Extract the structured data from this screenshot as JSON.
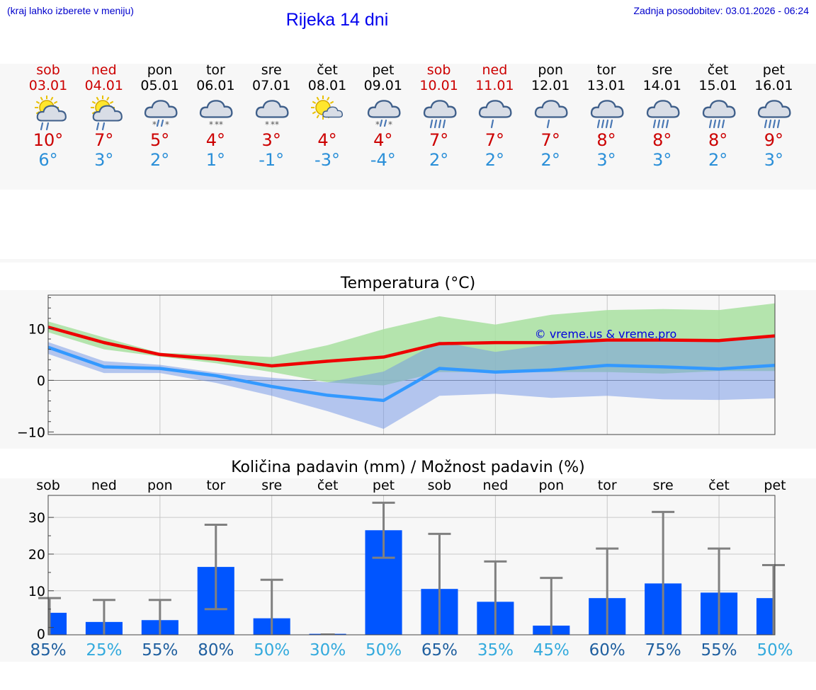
{
  "header": {
    "hint": "(kraj lahko izberete v meniju)",
    "title": "Rijeka 14 dni",
    "updated": "Zadnja posodobitev: 03.01.2026 - 06:24"
  },
  "days": [
    {
      "name": "sob",
      "date": "03.01",
      "weekend": true,
      "icon": "sun-cloud-rain-icon",
      "tmax": "10°",
      "tmin": "6°"
    },
    {
      "name": "ned",
      "date": "04.01",
      "weekend": true,
      "icon": "sun-cloud-rain-icon",
      "tmax": "7°",
      "tmin": "3°"
    },
    {
      "name": "pon",
      "date": "05.01",
      "weekend": false,
      "icon": "cloud-sleet-icon",
      "tmax": "5°",
      "tmin": "2°"
    },
    {
      "name": "tor",
      "date": "06.01",
      "weekend": false,
      "icon": "cloud-snow-icon",
      "tmax": "4°",
      "tmin": "1°"
    },
    {
      "name": "sre",
      "date": "07.01",
      "weekend": false,
      "icon": "cloud-snow-icon",
      "tmax": "3°",
      "tmin": "-1°"
    },
    {
      "name": "čet",
      "date": "08.01",
      "weekend": false,
      "icon": "sun-cloud-icon",
      "tmax": "4°",
      "tmin": "-3°"
    },
    {
      "name": "pet",
      "date": "09.01",
      "weekend": false,
      "icon": "cloud-sleet-icon",
      "tmax": "4°",
      "tmin": "-4°"
    },
    {
      "name": "sob",
      "date": "10.01",
      "weekend": true,
      "icon": "cloud-heavy-rain-icon",
      "tmax": "7°",
      "tmin": "2°"
    },
    {
      "name": "ned",
      "date": "11.01",
      "weekend": true,
      "icon": "cloud-rain-icon",
      "tmax": "7°",
      "tmin": "2°"
    },
    {
      "name": "pon",
      "date": "12.01",
      "weekend": false,
      "icon": "cloud-rain-icon",
      "tmax": "7°",
      "tmin": "2°"
    },
    {
      "name": "tor",
      "date": "13.01",
      "weekend": false,
      "icon": "cloud-heavy-rain-icon",
      "tmax": "8°",
      "tmin": "3°"
    },
    {
      "name": "sre",
      "date": "14.01",
      "weekend": false,
      "icon": "cloud-heavy-rain-icon",
      "tmax": "8°",
      "tmin": "3°"
    },
    {
      "name": "čet",
      "date": "15.01",
      "weekend": false,
      "icon": "cloud-heavy-rain-icon",
      "tmax": "8°",
      "tmin": "2°"
    },
    {
      "name": "pet",
      "date": "16.01",
      "weekend": false,
      "icon": "cloud-heavy-rain-icon",
      "tmax": "9°",
      "tmin": "3°"
    }
  ],
  "chart_data": [
    {
      "type": "line",
      "title": "Temperatura (°C)",
      "xlabel": "",
      "ylabel": "",
      "ylim": [
        -10.5,
        16.5
      ],
      "yticks": [
        "10",
        "0",
        "−10"
      ],
      "grid": true,
      "watermark": "© vreme.us & vreme.pro",
      "series": [
        {
          "name": "max",
          "color": "#ee0000",
          "values": [
            10.3,
            7.3,
            5.0,
            4.1,
            2.8,
            3.7,
            4.5,
            7.1,
            7.3,
            7.3,
            7.8,
            7.8,
            7.7,
            8.6
          ]
        },
        {
          "name": "min",
          "color": "#3399ff",
          "values": [
            6.4,
            2.6,
            2.3,
            0.9,
            -1.2,
            -2.9,
            -3.9,
            2.3,
            1.6,
            2.0,
            2.9,
            2.6,
            2.2,
            2.9
          ]
        },
        {
          "name": "max_range",
          "color": "#a8e0a0",
          "lower": [
            9.3,
            6.0,
            4.6,
            3.3,
            1.6,
            -0.4,
            -1.0,
            1.6,
            1.6,
            1.6,
            1.6,
            1.3,
            1.8,
            1.8
          ],
          "upper": [
            11.4,
            8.3,
            5.3,
            5.0,
            4.5,
            6.8,
            9.9,
            12.4,
            10.8,
            12.7,
            13.6,
            13.8,
            13.6,
            14.9
          ]
        },
        {
          "name": "min_range",
          "color": "#a0b8f0",
          "lower": [
            5.1,
            1.4,
            1.4,
            -0.5,
            -3.0,
            -6.0,
            -9.4,
            -3.0,
            -2.6,
            -3.4,
            -3.0,
            -3.7,
            -3.8,
            -3.5
          ],
          "upper": [
            7.4,
            3.7,
            3.0,
            1.5,
            0.5,
            -0.4,
            1.7,
            7.5,
            5.5,
            7.0,
            7.8,
            8.2,
            7.7,
            8.5
          ]
        }
      ]
    },
    {
      "type": "bar",
      "title": "Količina padavin (mm) / Možnost padavin (%)",
      "categories": [
        "sob",
        "ned",
        "pon",
        "tor",
        "sre",
        "čet",
        "pet",
        "sob",
        "ned",
        "pon",
        "tor",
        "sre",
        "čet",
        "pet"
      ],
      "ylim": [
        -2,
        36
      ],
      "yticks": [
        "30",
        "20",
        "10",
        "0"
      ],
      "series": [
        {
          "name": "padavine (mm)",
          "color": "#0055ff",
          "values": [
            4.0,
            1.5,
            2.0,
            16.5,
            2.5,
            0.0,
            26.5,
            10.5,
            7.0,
            0.5,
            8.0,
            12.0,
            9.5,
            8.0
          ]
        }
      ],
      "error_low": [
        0,
        0,
        0,
        5,
        0,
        0,
        19,
        0,
        0,
        0,
        0,
        0,
        0,
        0
      ],
      "error_high": [
        8,
        7.5,
        7.5,
        28,
        13,
        0,
        34,
        25.5,
        18,
        13.5,
        21.5,
        31.5,
        21.5,
        17
      ],
      "probability": [
        "85%",
        "25%",
        "55%",
        "80%",
        "50%",
        "30%",
        "50%",
        "65%",
        "35%",
        "45%",
        "60%",
        "75%",
        "55%",
        "50%"
      ],
      "probability_colors": [
        "#1f5f9f",
        "#33aadd",
        "#1f5f9f",
        "#1f5f9f",
        "#33aadd",
        "#33aadd",
        "#33aadd",
        "#1f5f9f",
        "#33aadd",
        "#33aadd",
        "#1f5f9f",
        "#1f5f9f",
        "#1f5f9f",
        "#33aadd"
      ]
    }
  ]
}
